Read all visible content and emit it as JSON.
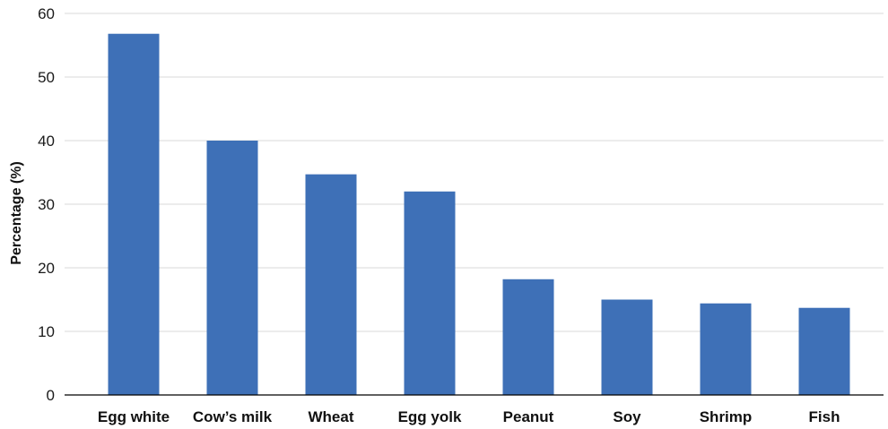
{
  "chart_data": {
    "type": "bar",
    "categories": [
      "Egg white",
      "Cow’s milk",
      "Wheat",
      "Egg yolk",
      "Peanut",
      "Soy",
      "Shrimp",
      "Fish"
    ],
    "values": [
      56.8,
      40.0,
      34.7,
      32.0,
      18.2,
      15.0,
      14.4,
      13.7
    ],
    "title": "",
    "xlabel": "",
    "ylabel": "Percentage (%)",
    "ylim": [
      0,
      60
    ],
    "yticks": [
      0,
      10,
      20,
      30,
      40,
      50,
      60
    ],
    "ytick_labels": [
      "0",
      "10",
      "20",
      "30",
      "40",
      "50",
      "60"
    ],
    "grid": true,
    "legend": "none",
    "colors": {
      "bar": "#3e70b7",
      "grid": "#d9d9d9",
      "axis": "#000000"
    }
  }
}
